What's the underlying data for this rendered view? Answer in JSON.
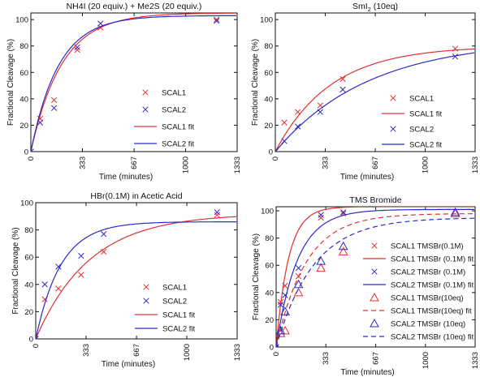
{
  "colors": {
    "red": "#e03030",
    "blue": "#2a2ac8",
    "axis": "#111111"
  },
  "chart_data": [
    {
      "type": "scatter",
      "title": "NH4I (20 equiv.) + Me2S (20 equiv.)",
      "xlabel": "Time (minutes)",
      "ylabel": "Fractional Cleavage (%)",
      "xlim": [
        0,
        1333
      ],
      "ylim": [
        0,
        105
      ],
      "xticks": [
        0,
        333,
        667,
        1000,
        1333
      ],
      "yticks": [
        0,
        20,
        40,
        60,
        80,
        100
      ],
      "legend_position": "lower-right",
      "legend": [
        "SCAL1",
        "SCAL2",
        "SCAL1 fit",
        "SCAL2 fit"
      ],
      "series": [
        {
          "name": "SCAL1",
          "kind": "points",
          "marker": "x",
          "color": "red",
          "x": [
            0,
            60,
            150,
            300,
            450,
            1200
          ],
          "y": [
            0,
            25,
            39,
            77,
            94,
            100
          ]
        },
        {
          "name": "SCAL2",
          "kind": "points",
          "marker": "x",
          "color": "blue",
          "x": [
            0,
            60,
            150,
            300,
            450,
            1200
          ],
          "y": [
            0,
            22,
            33,
            79,
            97,
            99
          ]
        },
        {
          "name": "SCAL1 fit",
          "kind": "fit",
          "style": "solid",
          "color": "red",
          "plateau": 105,
          "k": 0.005
        },
        {
          "name": "SCAL2 fit",
          "kind": "fit",
          "style": "solid",
          "color": "blue",
          "plateau": 103,
          "k": 0.0056
        }
      ]
    },
    {
      "type": "scatter",
      "title": "SmI2 (10eq)",
      "xlabel": "Time (minutes)",
      "ylabel": "Fractional Cleavage (%)",
      "xlim": [
        0,
        1333
      ],
      "ylim": [
        0,
        105
      ],
      "xticks": [
        0,
        333,
        667,
        1000,
        1333
      ],
      "yticks": [
        0,
        20,
        40,
        60,
        80,
        100
      ],
      "legend_position": "lower-right",
      "legend": [
        "SCAL1",
        "SCAL1 fit",
        "SCAL2",
        "SCAL2 fit"
      ],
      "series": [
        {
          "name": "SCAL1",
          "kind": "points",
          "marker": "x",
          "color": "red",
          "x": [
            0,
            60,
            150,
            300,
            450,
            1200
          ],
          "y": [
            0,
            22,
            30,
            35,
            55,
            78
          ]
        },
        {
          "name": "SCAL2",
          "kind": "points",
          "marker": "x",
          "color": "blue",
          "x": [
            0,
            60,
            150,
            300,
            450,
            1200
          ],
          "y": [
            0,
            8,
            19,
            30,
            47,
            72
          ]
        },
        {
          "name": "SCAL1 fit",
          "kind": "fit",
          "style": "solid",
          "color": "red",
          "plateau": 80,
          "k": 0.0027
        },
        {
          "name": "SCAL2 fit",
          "kind": "fit",
          "style": "solid",
          "color": "blue",
          "plateau": 85,
          "k": 0.0016
        }
      ]
    },
    {
      "type": "scatter",
      "title": "HBr(0.1M) in Acetic Acid",
      "xlabel": "Time (minutes)",
      "ylabel": "Fractional Cleavage (%)",
      "xlim": [
        0,
        1333
      ],
      "ylim": [
        0,
        100
      ],
      "xticks": [
        0,
        333,
        667,
        1000,
        1333
      ],
      "yticks": [
        0,
        20,
        40,
        60,
        80,
        100
      ],
      "legend_position": "lower-right",
      "legend": [
        "SCAL1",
        "SCAL2",
        "SCAL1 fit",
        "SCAL2 fit"
      ],
      "series": [
        {
          "name": "SCAL1",
          "kind": "points",
          "marker": "x",
          "color": "red",
          "x": [
            0,
            60,
            150,
            300,
            450,
            1200
          ],
          "y": [
            0,
            29,
            37,
            47,
            64,
            91
          ]
        },
        {
          "name": "SCAL2",
          "kind": "points",
          "marker": "x",
          "color": "blue",
          "x": [
            0,
            60,
            150,
            300,
            450,
            1200
          ],
          "y": [
            0,
            40,
            53,
            61,
            77,
            93
          ]
        },
        {
          "name": "SCAL1 fit",
          "kind": "fit",
          "style": "solid",
          "color": "red",
          "plateau": 92,
          "k": 0.0028
        },
        {
          "name": "SCAL2 fit",
          "kind": "fit",
          "style": "solid",
          "color": "blue",
          "plateau": 86,
          "k": 0.006
        }
      ]
    },
    {
      "type": "scatter",
      "title": "TMS Bromide",
      "xlabel": "Time (minutes)",
      "ylabel": "Fractional Cleavage (%)",
      "xlim": [
        0,
        1333
      ],
      "ylim": [
        0,
        103
      ],
      "xticks": [
        0,
        333,
        667,
        1000,
        1333
      ],
      "yticks": [
        0,
        20,
        40,
        60,
        80,
        100
      ],
      "legend_position": "lower-right",
      "legend": [
        "SCAL1 TMSBr(0.1M)",
        "SCAL1 TMSBr (0.1M) fit",
        "SCAL2 TMSBr (0.1M)",
        "SCAL2 TMSBr (0.1M) fit",
        "SCAL1 TMSBr(10eq)",
        "SCAL1 TMSBr(10eq) fit",
        "SCAL2 TMSBr (10eq)",
        "SCAL2 TMSBr (10eq) fit"
      ],
      "series": [
        {
          "name": "SCAL1 TMSBr(0.1M)",
          "kind": "points",
          "marker": "x",
          "color": "red",
          "x": [
            0,
            30,
            60,
            150,
            300,
            450
          ],
          "y": [
            0,
            33,
            45,
            52,
            95,
            98
          ]
        },
        {
          "name": "SCAL1 TMSBr (0.1M) fit",
          "kind": "fit",
          "style": "solid",
          "color": "red",
          "plateau": 103,
          "k": 0.012
        },
        {
          "name": "SCAL2 TMSBr (0.1M)",
          "kind": "points",
          "marker": "x",
          "color": "blue",
          "x": [
            0,
            30,
            60,
            150,
            300,
            450
          ],
          "y": [
            0,
            31,
            38,
            58,
            97,
            99
          ]
        },
        {
          "name": "SCAL2 TMSBr (0.1M) fit",
          "kind": "fit",
          "style": "solid",
          "color": "blue",
          "plateau": 101,
          "k": 0.007
        },
        {
          "name": "SCAL1 TMSBr(10eq)",
          "kind": "points",
          "marker": "triangle",
          "color": "red",
          "x": [
            0,
            30,
            60,
            150,
            300,
            450,
            1200
          ],
          "y": [
            0,
            10,
            12,
            40,
            58,
            70,
            98
          ]
        },
        {
          "name": "SCAL1 TMSBr(10eq) fit",
          "kind": "fit",
          "style": "dashed",
          "color": "red",
          "plateau": 98,
          "k": 0.005
        },
        {
          "name": "SCAL2 TMSBr (10eq)",
          "kind": "points",
          "marker": "triangle",
          "color": "blue",
          "x": [
            0,
            30,
            60,
            150,
            300,
            450,
            1200
          ],
          "y": [
            0,
            12,
            26,
            46,
            63,
            74,
            99
          ]
        },
        {
          "name": "SCAL2 TMSBr (10eq) fit",
          "kind": "fit",
          "style": "dashed",
          "color": "blue",
          "plateau": 95,
          "k": 0.004
        }
      ]
    }
  ]
}
